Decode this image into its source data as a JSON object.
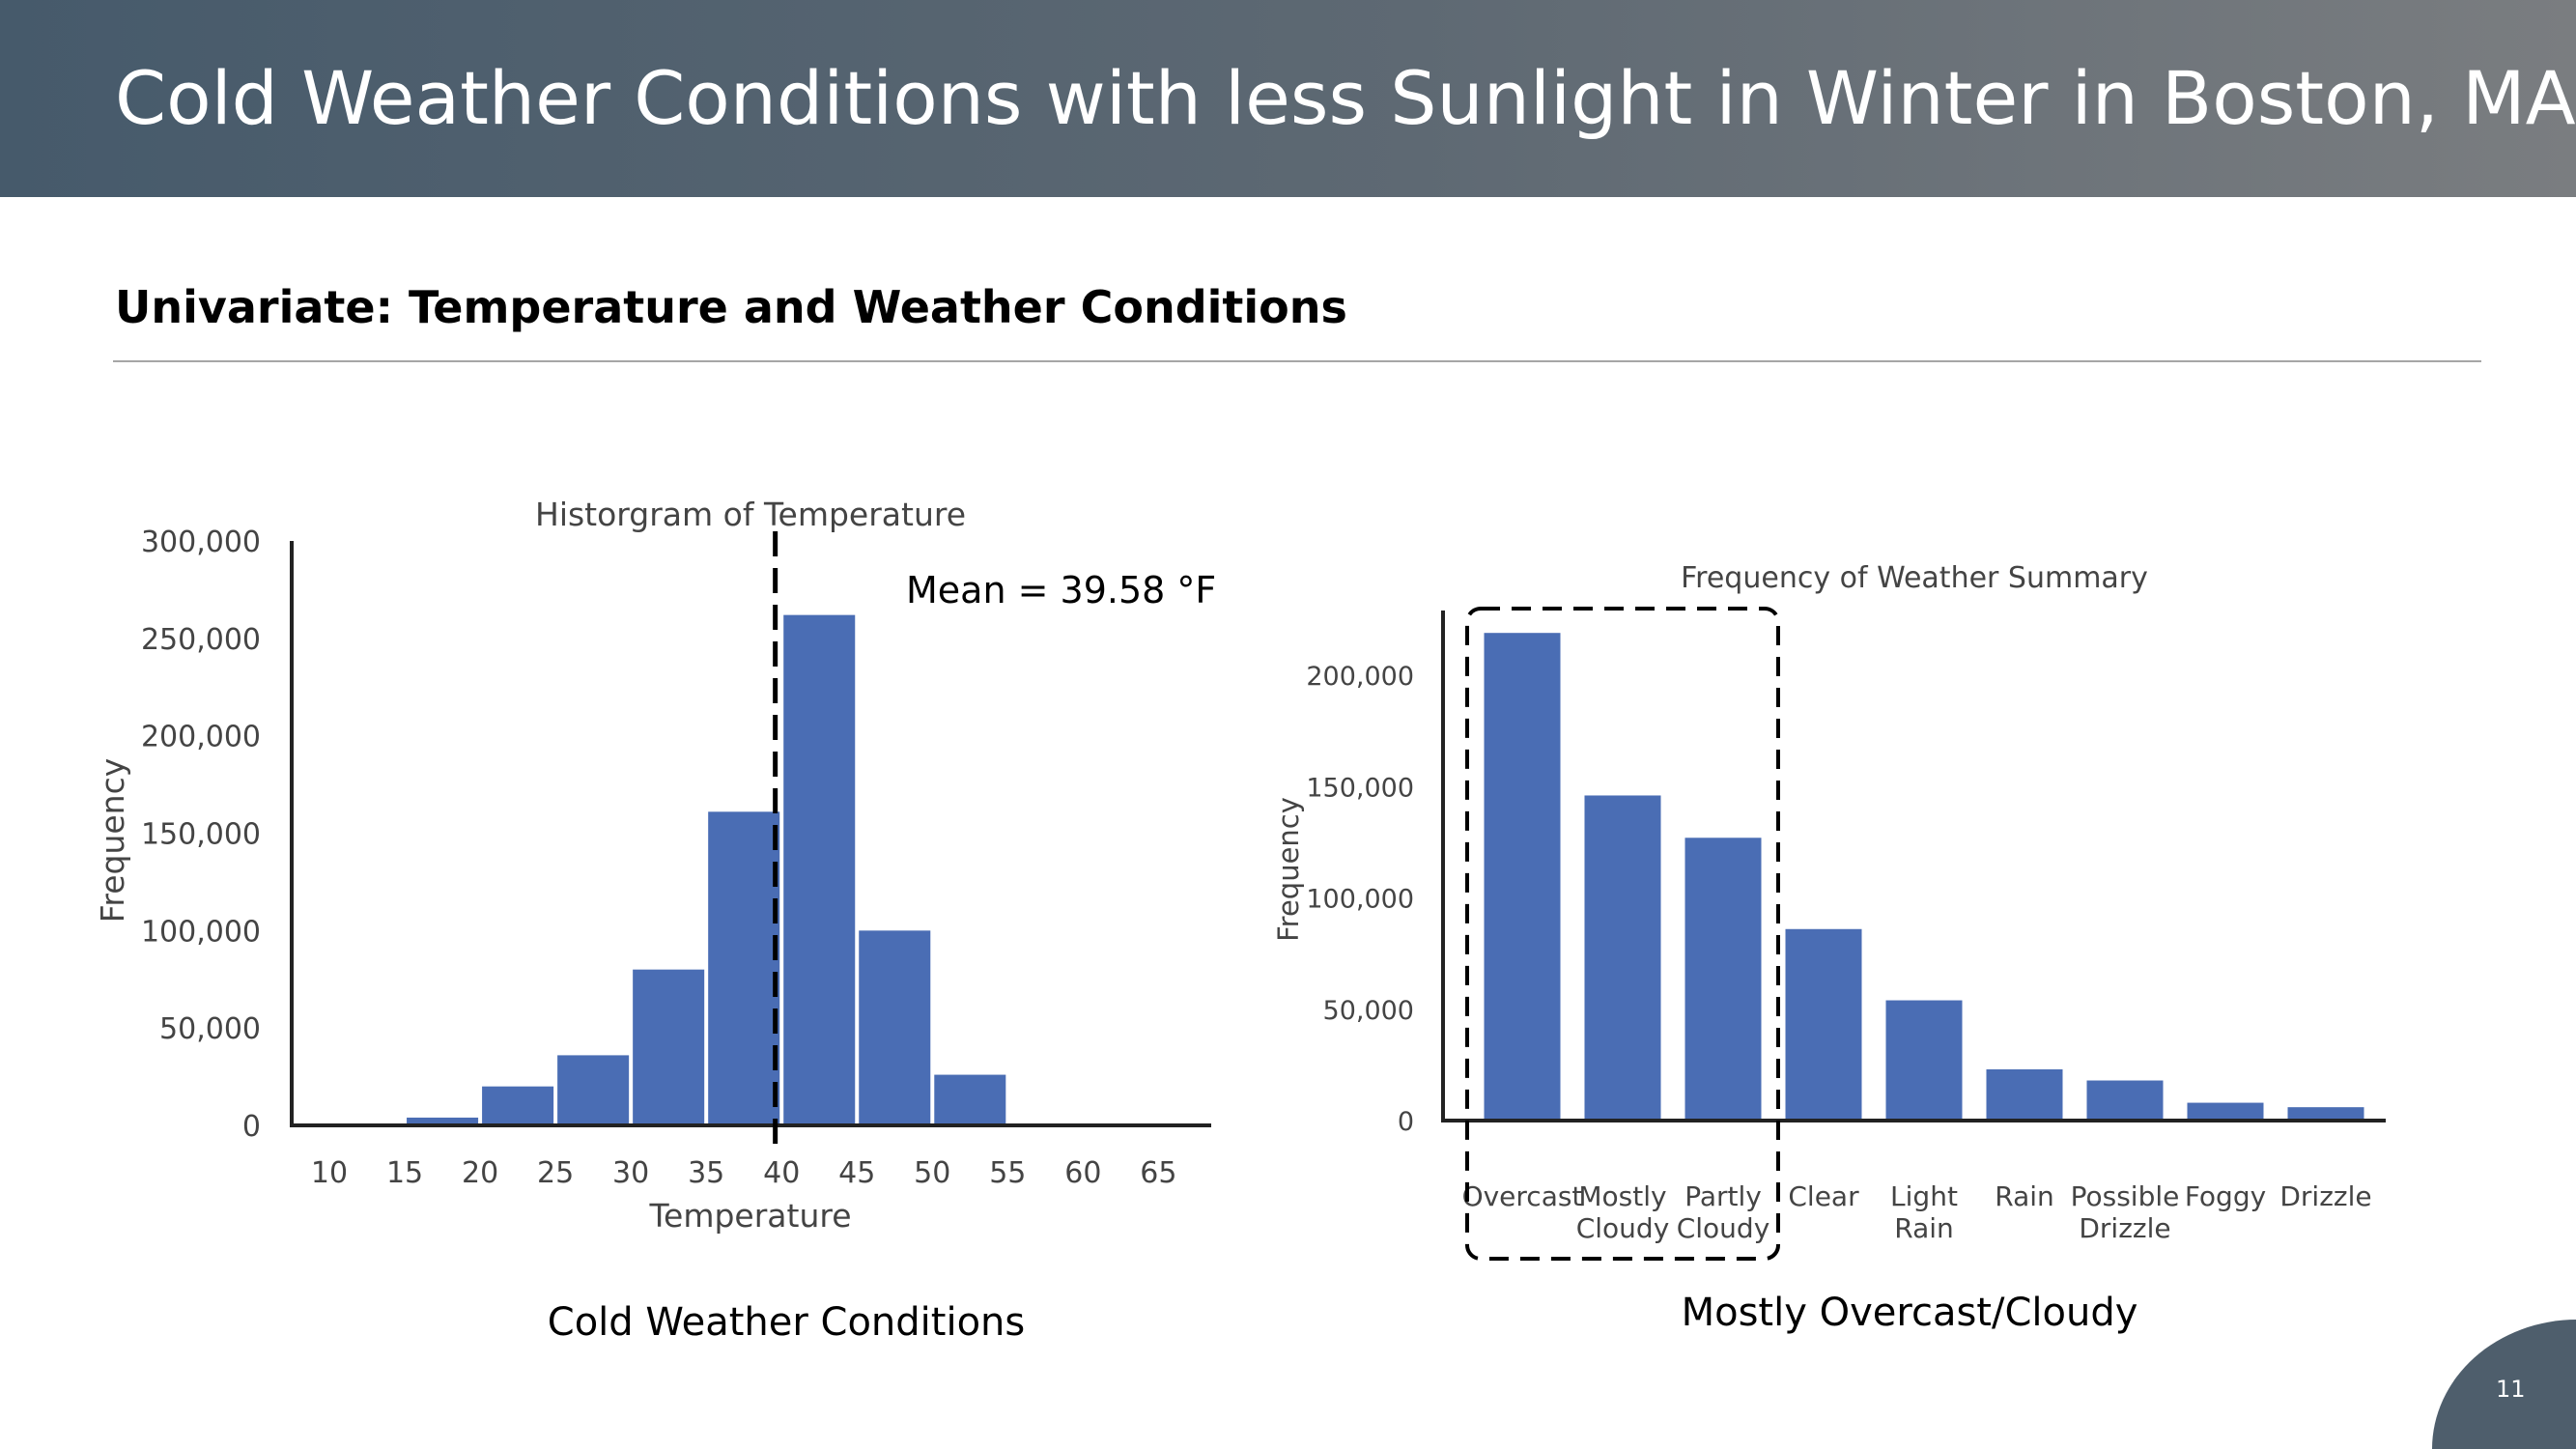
{
  "slide": {
    "title": "Cold Weather Conditions with less Sunlight in Winter in Boston, MA",
    "section_title": "Univariate: Temperature and Weather Conditions",
    "page_number": "11"
  },
  "captions": {
    "left": "Cold Weather Conditions",
    "right": "Mostly Overcast/Cloudy"
  },
  "colors": {
    "banner_start": "#465a6b",
    "banner_end": "#7a7d80",
    "bar": "#4a6db4",
    "axis": "#222222",
    "text": "#444444"
  },
  "chart_data": [
    {
      "type": "bar",
      "title": "Historgram of Temperature",
      "xlabel": "Temperature",
      "ylabel": "Frequency",
      "bin_edges": [
        10,
        15,
        20,
        25,
        30,
        35,
        40,
        45,
        50,
        55,
        60,
        65
      ],
      "values": [
        0,
        4000,
        20000,
        36000,
        80000,
        161000,
        262000,
        100000,
        26000,
        0,
        0
      ],
      "xticks": [
        "10",
        "15",
        "20",
        "25",
        "30",
        "35",
        "40",
        "45",
        "50",
        "55",
        "60",
        "65"
      ],
      "yticks": [
        "0",
        "50,000",
        "100,000",
        "150,000",
        "200,000",
        "250,000",
        "300,000"
      ],
      "ylim": [
        0,
        300000
      ],
      "xlim": [
        7.5,
        68.5
      ],
      "annotation": {
        "x": 39.58,
        "text": "Mean = 39.58 °F"
      },
      "grid": false,
      "legend": "none"
    },
    {
      "type": "bar",
      "title": "Frequency of Weather Summary",
      "xlabel": "",
      "ylabel": "Frequency",
      "categories": [
        [
          "Overcast"
        ],
        [
          "Mostly",
          "Cloudy"
        ],
        [
          "Partly",
          "Cloudy"
        ],
        [
          "Clear"
        ],
        [
          "Light",
          "Rain"
        ],
        [
          "Rain"
        ],
        [
          "Possible",
          "Drizzle"
        ],
        [
          "Foggy"
        ],
        [
          "Drizzle"
        ]
      ],
      "values": [
        219000,
        146000,
        127000,
        86000,
        54000,
        23000,
        18000,
        8000,
        6000
      ],
      "yticks": [
        "0",
        "50,000",
        "100,000",
        "150,000",
        "200,000"
      ],
      "ylim": [
        0,
        230000
      ],
      "highlight": [
        "Overcast",
        "Mostly Cloudy",
        "Partly Cloudy"
      ],
      "grid": false,
      "legend": "none"
    }
  ]
}
